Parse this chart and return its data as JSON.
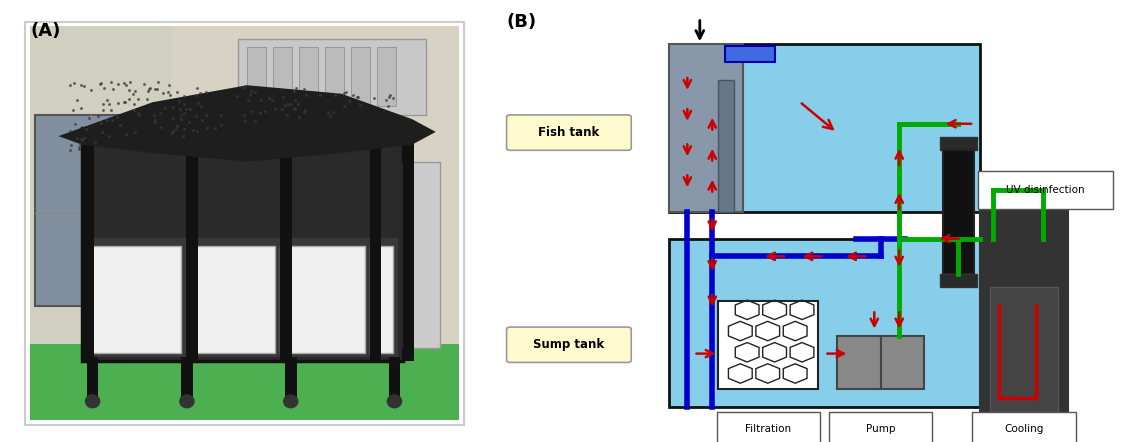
{
  "panel_A_label": "(A)",
  "panel_B_label": "(B)",
  "fish_tank_label": "Fish tank",
  "sump_tank_label": "Sump tank",
  "filtration_label": "Filtration",
  "pump_label": "Pump",
  "cooling_label": "Cooling",
  "uv_label": "UV disinfection",
  "fish_tank_color": "#87CEEB",
  "sump_tank_color": "#87CEEB",
  "pipe_blue_dark": "#0000CD",
  "pipe_blue_light": "#3333CC",
  "pipe_green": "#00AA00",
  "arrow_red": "#CC0000",
  "tank_border": "#111111",
  "overflow_gray": "#8898AA",
  "overflow_gray2": "#778899",
  "label_box_fill": "#FFFACD",
  "label_box_edge": "#888888",
  "gray_pump": "#888888",
  "dark_uv": "#111111",
  "dark_cool": "#2a2a2a",
  "cool_mid": "#444444",
  "white": "#FFFFFF",
  "bg_color": "#FFFFFF",
  "photo_bg": "#E8E8E8",
  "photo_wall": "#D4CFC5",
  "photo_floor": "#4CAF50",
  "photo_window": "#B0C8E0",
  "photo_black": "#111111",
  "photo_dark": "#2A2A2A",
  "photo_cover": "#1A1A1A",
  "photo_white_panel": "#F0F0F0"
}
